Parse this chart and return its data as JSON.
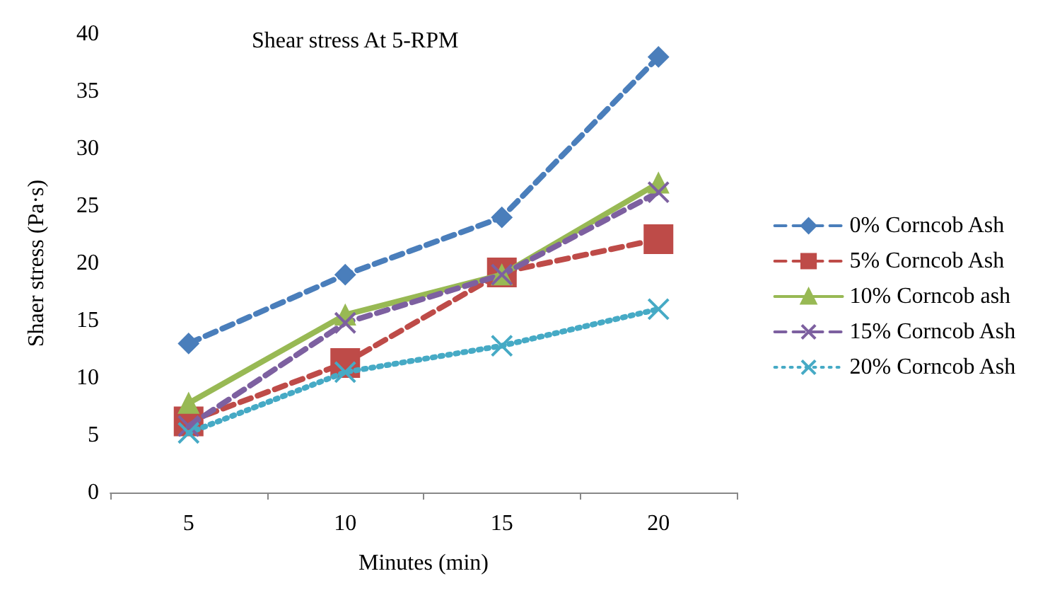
{
  "chart_data": {
    "type": "line",
    "title": "Shear stress At 5-RPM",
    "xlabel": "Minutes (min)",
    "ylabel": "Shaer stress (Pa·s)",
    "categories": [
      "5",
      "10",
      "15",
      "20"
    ],
    "ylim": [
      0,
      40
    ],
    "yticks": [
      0,
      5,
      10,
      15,
      20,
      25,
      30,
      35,
      40
    ],
    "grid": false,
    "legend": "right",
    "series": [
      {
        "name": "0% Corncob Ash",
        "color": "#4a7ebb",
        "marker": "diamond",
        "line_style": "dashed",
        "values": [
          13,
          19,
          24,
          38
        ]
      },
      {
        "name": "5% Corncob Ash",
        "color": "#be4b48",
        "marker": "square",
        "line_style": "dashed",
        "values": [
          6.2,
          11.3,
          19.2,
          22.1
        ]
      },
      {
        "name": "10% Corncob ash",
        "color": "#98b954",
        "marker": "triangle",
        "line_style": "solid",
        "values": [
          7.8,
          15.5,
          19,
          27
        ]
      },
      {
        "name": "15% Corncob Ash",
        "color": "#7d60a0",
        "marker": "cross",
        "line_style": "dashed",
        "values": [
          5.8,
          14.8,
          19,
          26.2
        ]
      },
      {
        "name": "20% Corncob Ash",
        "color": "#46aac5",
        "marker": "cross",
        "line_style": "dotted",
        "values": [
          5.2,
          10.5,
          12.8,
          16
        ]
      }
    ]
  }
}
